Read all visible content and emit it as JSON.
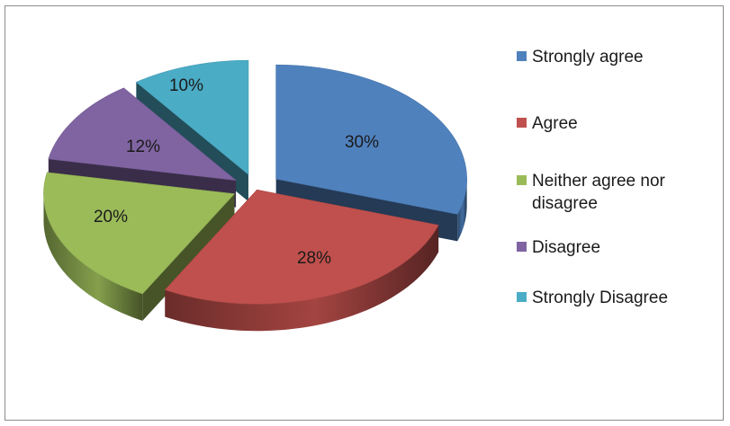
{
  "chart_data": {
    "type": "pie",
    "title": "",
    "legend_position": "right",
    "slices": [
      {
        "label": "Strongly agree",
        "value": 30,
        "value_label": "30%",
        "color": "#4f81bd"
      },
      {
        "label": "Agree",
        "value": 28,
        "value_label": "28%",
        "color": "#c0504d"
      },
      {
        "label": "Neither agree nor disagree",
        "value": 20,
        "value_label": "20%",
        "color": "#9bbb59"
      },
      {
        "label": "Disagree",
        "value": 12,
        "value_label": "12%",
        "color": "#8064a2"
      },
      {
        "label": "Strongly Disagree",
        "value": 10,
        "value_label": "10%",
        "color": "#4bacc6"
      }
    ]
  }
}
